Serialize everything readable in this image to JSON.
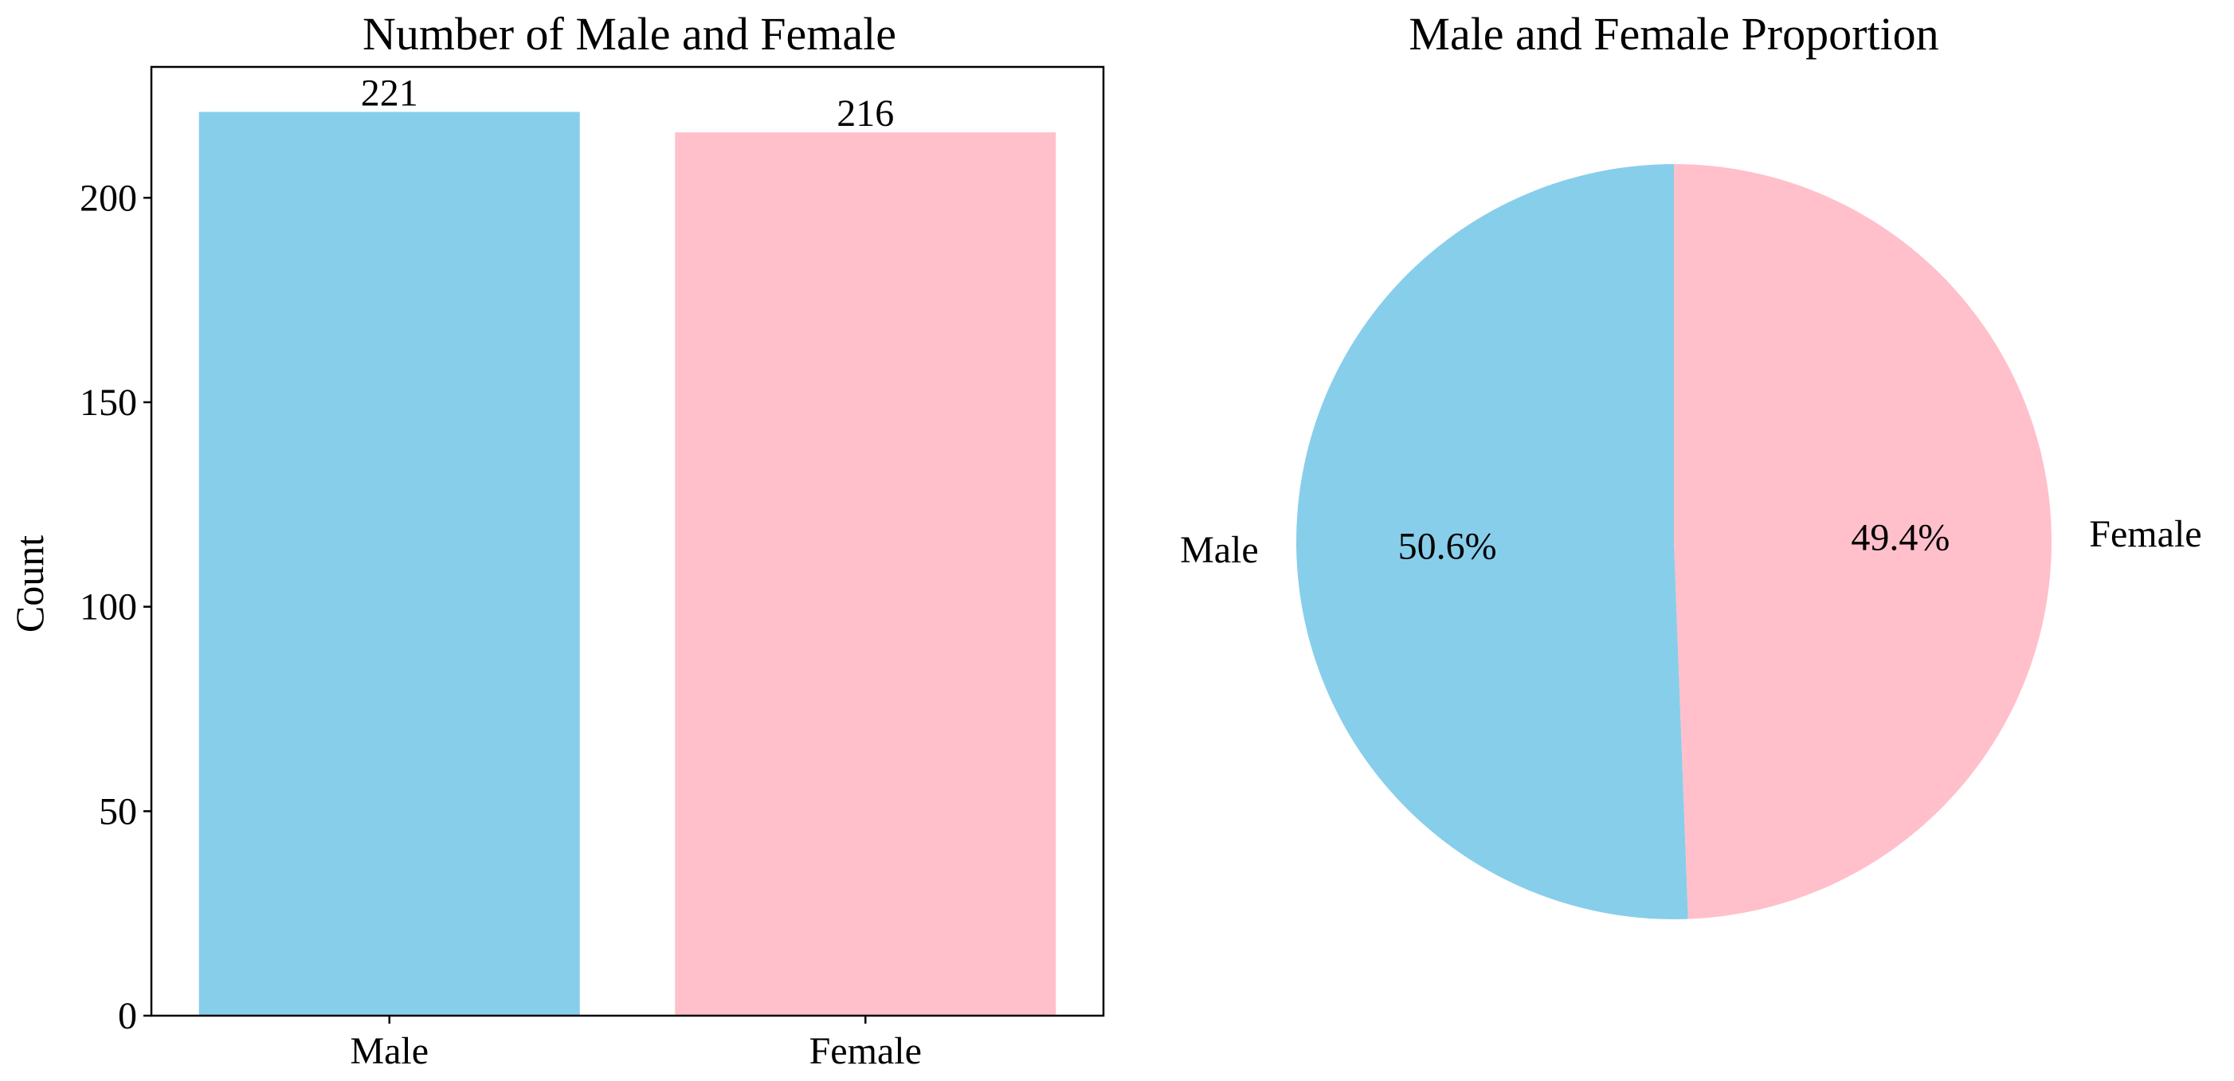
{
  "chart_data": [
    {
      "type": "bar",
      "title": "Number of Male and Female",
      "xlabel": "",
      "ylabel": "Count",
      "categories": [
        "Male",
        "Female"
      ],
      "values": [
        221,
        216
      ],
      "data_labels": [
        "221",
        "216"
      ],
      "colors": [
        "#87ceeb",
        "#ffc0cb"
      ],
      "ylim": [
        0,
        232
      ],
      "yticks": [
        0,
        50,
        100,
        150,
        200
      ],
      "grid": false
    },
    {
      "type": "pie",
      "title": "Male and Female Proportion",
      "labels": [
        "Male",
        "Female"
      ],
      "values": [
        50.6,
        49.4
      ],
      "percent_labels": [
        "50.6%",
        "49.4%"
      ],
      "colors": [
        "#87ceeb",
        "#ffc0cb"
      ],
      "start_angle_deg": 90,
      "direction": "counterclockwise"
    }
  ]
}
